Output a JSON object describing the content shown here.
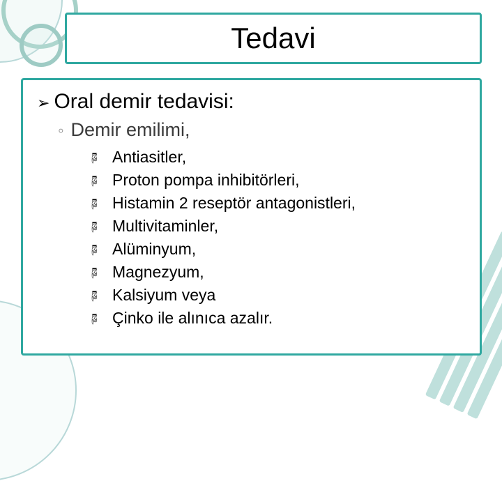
{
  "colors": {
    "border": "#2fa8a0",
    "deco": "#b8d8d8",
    "text_primary": "#000000",
    "text_muted": "#3b3b3b",
    "bullet_l2": "#8c8c8c",
    "background": "#ffffff"
  },
  "title": "Tedavi",
  "level1": {
    "bullet_glyph": "➢",
    "text": "Oral demir tedavisi:"
  },
  "level2": {
    "bullet_glyph": "◦",
    "text": "Demir emilimi,"
  },
  "level3": {
    "bullet_glyph": "🖗",
    "items": [
      "Antiasitler,",
      "Proton pompa inhibitörleri,",
      "Histamin 2 reseptör antagonistleri,",
      "Multivitaminler,",
      "Alüminyum,",
      "Magnezyum,",
      "Kalsiyum veya",
      "Çinko ile alınıca azalır."
    ]
  }
}
